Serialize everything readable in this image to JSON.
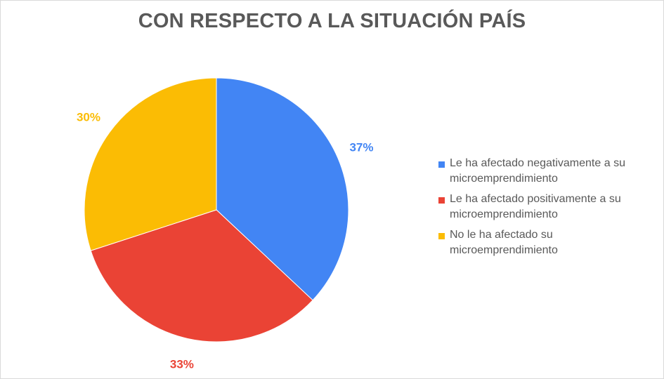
{
  "chart_data": {
    "type": "pie",
    "title": "CON RESPECTO A LA SITUACIÓN PAÍS",
    "slices": [
      {
        "label": "Le ha afectado negativamente a su microemprendimiento",
        "value": 37,
        "data_label": "37%",
        "color": "#4285F4"
      },
      {
        "label": "Le ha afectado positivamente a su microemprendimiento",
        "value": 33,
        "data_label": "33%",
        "color": "#EA4335"
      },
      {
        "label": "No le ha afectado su microemprendimiento",
        "value": 30,
        "data_label": "30%",
        "color": "#FBBC04"
      }
    ],
    "legend_position": "right"
  }
}
